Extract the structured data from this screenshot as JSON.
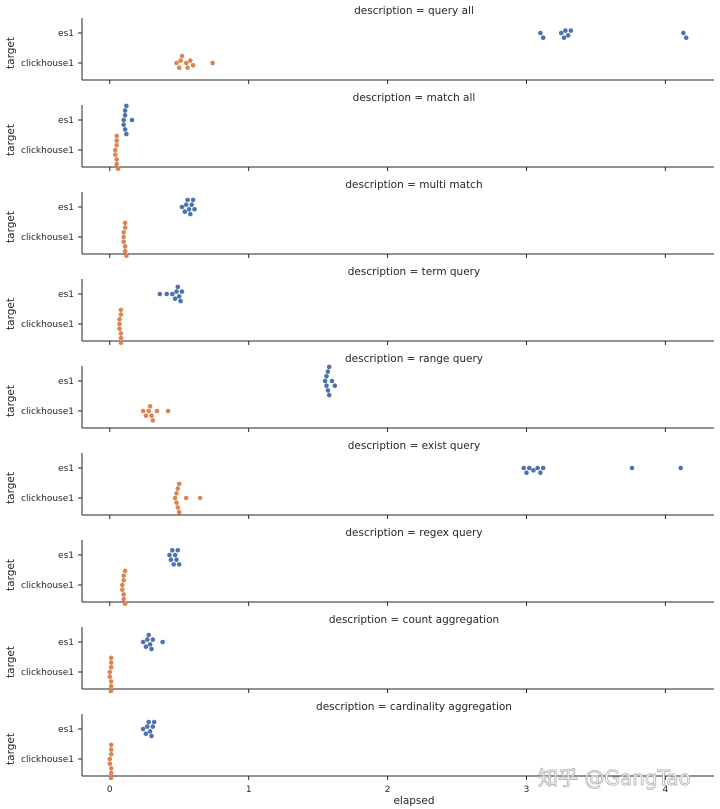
{
  "chart_data": {
    "type": "scatter",
    "subtype": "swarm, faceted rows",
    "xlabel": "elapsed",
    "ylabel": "target",
    "categories": [
      "es1",
      "clickhouse1"
    ],
    "category_colors": {
      "es1": "#4c72b0",
      "clickhouse1": "#dd8452"
    },
    "xlim": [
      -0.2,
      4.35
    ],
    "xticks": [
      "0",
      "1",
      "2",
      "3",
      "4"
    ],
    "grid": false,
    "watermark": "知乎 @GangTao",
    "panels": [
      {
        "title": "description = query all",
        "series": [
          {
            "category": "es1",
            "values": [
              3.1,
              3.12,
              3.25,
              3.27,
              3.28,
              3.3,
              3.32,
              4.13,
              4.15
            ]
          },
          {
            "category": "clickhouse1",
            "values": [
              0.48,
              0.5,
              0.51,
              0.52,
              0.55,
              0.56,
              0.58,
              0.6,
              0.74
            ]
          }
        ]
      },
      {
        "title": "description = match all",
        "series": [
          {
            "category": "es1",
            "values": [
              0.1,
              0.1,
              0.11,
              0.11,
              0.11,
              0.12,
              0.12,
              0.16
            ]
          },
          {
            "category": "clickhouse1",
            "values": [
              0.04,
              0.04,
              0.05,
              0.05,
              0.05,
              0.05,
              0.05,
              0.06
            ]
          }
        ]
      },
      {
        "title": "description = multi match",
        "series": [
          {
            "category": "es1",
            "values": [
              0.52,
              0.54,
              0.55,
              0.56,
              0.57,
              0.58,
              0.59,
              0.6,
              0.61
            ]
          },
          {
            "category": "clickhouse1",
            "values": [
              0.1,
              0.1,
              0.1,
              0.11,
              0.11,
              0.11,
              0.11,
              0.12
            ]
          }
        ]
      },
      {
        "title": "description = term query",
        "series": [
          {
            "category": "es1",
            "values": [
              0.36,
              0.41,
              0.45,
              0.47,
              0.48,
              0.49,
              0.5,
              0.51,
              0.52
            ]
          },
          {
            "category": "clickhouse1",
            "values": [
              0.07,
              0.07,
              0.07,
              0.08,
              0.08,
              0.08,
              0.08,
              0.08
            ]
          }
        ]
      },
      {
        "title": "description = range query",
        "series": [
          {
            "category": "es1",
            "values": [
              1.55,
              1.56,
              1.56,
              1.57,
              1.57,
              1.58,
              1.58,
              1.6,
              1.62
            ]
          },
          {
            "category": "clickhouse1",
            "values": [
              0.24,
              0.26,
              0.28,
              0.29,
              0.3,
              0.31,
              0.34,
              0.42
            ]
          }
        ]
      },
      {
        "title": "description = exist query",
        "series": [
          {
            "category": "es1",
            "values": [
              2.98,
              3.0,
              3.02,
              3.05,
              3.08,
              3.1,
              3.12,
              3.76,
              4.11
            ]
          },
          {
            "category": "clickhouse1",
            "values": [
              0.47,
              0.48,
              0.48,
              0.49,
              0.49,
              0.5,
              0.5,
              0.55,
              0.65
            ]
          }
        ]
      },
      {
        "title": "description = regex query",
        "series": [
          {
            "category": "es1",
            "values": [
              0.43,
              0.44,
              0.45,
              0.46,
              0.47,
              0.48,
              0.49,
              0.5
            ]
          },
          {
            "category": "clickhouse1",
            "values": [
              0.09,
              0.09,
              0.1,
              0.1,
              0.1,
              0.1,
              0.11,
              0.11
            ]
          }
        ]
      },
      {
        "title": "description = count aggregation",
        "series": [
          {
            "category": "es1",
            "values": [
              0.24,
              0.26,
              0.27,
              0.28,
              0.29,
              0.3,
              0.31,
              0.38
            ]
          },
          {
            "category": "clickhouse1",
            "values": [
              0.0,
              0.0,
              0.01,
              0.01,
              0.01,
              0.01,
              0.01,
              0.01
            ]
          }
        ]
      },
      {
        "title": "description = cardinality aggregation",
        "series": [
          {
            "category": "es1",
            "values": [
              0.24,
              0.26,
              0.27,
              0.28,
              0.29,
              0.3,
              0.31,
              0.32
            ]
          },
          {
            "category": "clickhouse1",
            "values": [
              0.0,
              0.0,
              0.01,
              0.01,
              0.01,
              0.01,
              0.01,
              0.01
            ]
          }
        ]
      }
    ]
  }
}
